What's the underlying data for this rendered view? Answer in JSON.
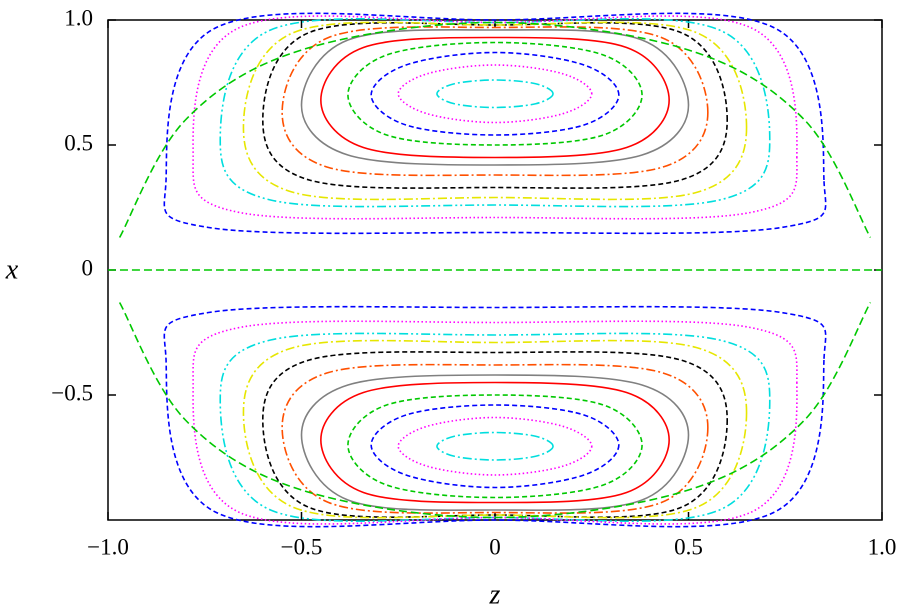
{
  "chart_data": {
    "type": "contour",
    "xlabel": "z",
    "ylabel": "x",
    "xlim": [
      -1,
      1
    ],
    "ylim": [
      -1,
      1
    ],
    "xticks": [
      {
        "value": -1,
        "label": "−1.0"
      },
      {
        "value": -0.5,
        "label": "−0.5"
      },
      0,
      0.5,
      {
        "value": 1,
        "label": "1.0"
      }
    ],
    "yticks": [
      {
        "value": -0.5,
        "label": "−0.5"
      },
      0,
      0.5,
      {
        "value": 1,
        "label": "1.0"
      }
    ],
    "series": [
      {
        "color": "#00dede",
        "dash": "dashdot",
        "closed": true,
        "x": [
          0.15,
          0.105,
          0,
          -0.105,
          -0.15,
          -0.105,
          0,
          0.105
        ],
        "y": [
          0.705,
          0.745,
          0.76,
          0.745,
          0.705,
          0.665,
          0.65,
          0.665
        ]
      },
      {
        "color": "#ff00ff",
        "dash": "dotted",
        "closed": true,
        "x": [
          0.25,
          0.175,
          0,
          -0.175,
          -0.25,
          -0.175,
          0,
          0.175
        ],
        "y": [
          0.705,
          0.785,
          0.82,
          0.785,
          0.705,
          0.625,
          0.59,
          0.625
        ]
      },
      {
        "color": "#0000ff",
        "dash": "dashed",
        "closed": true,
        "x": [
          0.32,
          0.23,
          0,
          -0.23,
          -0.32,
          -0.23,
          0,
          0.23
        ],
        "y": [
          0.7,
          0.82,
          0.87,
          0.82,
          0.7,
          0.58,
          0.54,
          0.58
        ]
      },
      {
        "color": "#00c800",
        "dash": "dashed",
        "closed": true,
        "x": [
          0.38,
          0.28,
          0,
          -0.28,
          -0.38,
          -0.28,
          0,
          0.28
        ],
        "y": [
          0.7,
          0.86,
          0.91,
          0.86,
          0.7,
          0.54,
          0.5,
          0.54
        ]
      },
      {
        "color": "#ff0000",
        "dash": "solid",
        "closed": true,
        "x": [
          0.45,
          0.34,
          0,
          -0.34,
          -0.45,
          -0.34,
          0,
          0.34
        ],
        "y": [
          0.68,
          0.89,
          0.93,
          0.89,
          0.68,
          0.49,
          0.45,
          0.49
        ]
      },
      {
        "color": "#808080",
        "dash": "solid",
        "closed": true,
        "x": [
          0.5,
          0.38,
          0,
          -0.38,
          -0.5,
          -0.38,
          0,
          0.38
        ],
        "y": [
          0.66,
          0.92,
          0.96,
          0.92,
          0.66,
          0.46,
          0.42,
          0.46
        ]
      },
      {
        "color": "#ff5000",
        "dash": "dashdot",
        "closed": true,
        "x": [
          0.55,
          0.43,
          0,
          -0.43,
          -0.55,
          -0.43,
          0,
          0.43
        ],
        "y": [
          0.63,
          0.93,
          0.97,
          0.93,
          0.63,
          0.41,
          0.38,
          0.41
        ]
      },
      {
        "color": "#000000",
        "dash": "dashed",
        "closed": true,
        "x": [
          0.6,
          0.48,
          0,
          -0.48,
          -0.6,
          -0.48,
          0,
          0.48
        ],
        "y": [
          0.6,
          0.95,
          0.98,
          0.95,
          0.6,
          0.36,
          0.33,
          0.36
        ]
      },
      {
        "color": "#e6e600",
        "dash": "dashdot",
        "closed": true,
        "x": [
          0.65,
          0.52,
          0,
          -0.52,
          -0.65,
          -0.52,
          0,
          0.52
        ],
        "y": [
          0.57,
          0.95,
          0.98,
          0.95,
          0.57,
          0.31,
          0.29,
          0.31
        ]
      },
      {
        "color": "#00dede",
        "dash": "dashdotdot",
        "closed": true,
        "x": [
          0.71,
          0.58,
          0,
          -0.58,
          -0.71,
          -0.58,
          0,
          0.58
        ],
        "y": [
          0.52,
          0.96,
          0.99,
          0.96,
          0.52,
          0.28,
          0.26,
          0.28
        ]
      },
      {
        "color": "#ff00ff",
        "dash": "dotted",
        "closed": true,
        "x": [
          0.78,
          0.66,
          0,
          -0.66,
          -0.78,
          -0.66,
          0,
          0.66
        ],
        "y": [
          0.45,
          0.97,
          0.99,
          0.97,
          0.45,
          0.23,
          0.21,
          0.23
        ]
      },
      {
        "color": "#0000ff",
        "dash": "dashed",
        "closed": true,
        "x": [
          0.85,
          0.72,
          0,
          -0.72,
          -0.85,
          -0.74,
          0,
          0.74
        ],
        "y": [
          0.36,
          0.97,
          1.0,
          0.97,
          0.36,
          0.17,
          0.15,
          0.17
        ]
      },
      {
        "color": "#00c800",
        "dash": "longdash",
        "closed": false,
        "x": [
          -0.97,
          -0.8,
          -0.5,
          0,
          0.5,
          0.8,
          0.97
        ],
        "y": [
          0.13,
          0.6,
          0.88,
          0.99,
          0.88,
          0.6,
          0.13
        ]
      },
      {
        "color": "#00c800",
        "dash": "longdash",
        "closed": false,
        "x": [
          -1,
          1
        ],
        "y": [
          0,
          0
        ]
      },
      {
        "color": "#00dede",
        "dash": "dashdot",
        "closed": true,
        "x": [
          0.15,
          0.105,
          0,
          -0.105,
          -0.15,
          -0.105,
          0,
          0.105
        ],
        "y": [
          -0.705,
          -0.745,
          -0.76,
          -0.745,
          -0.705,
          -0.665,
          -0.65,
          -0.665
        ]
      },
      {
        "color": "#ff00ff",
        "dash": "dotted",
        "closed": true,
        "x": [
          0.25,
          0.175,
          0,
          -0.175,
          -0.25,
          -0.175,
          0,
          0.175
        ],
        "y": [
          -0.705,
          -0.785,
          -0.82,
          -0.785,
          -0.705,
          -0.625,
          -0.59,
          -0.625
        ]
      },
      {
        "color": "#0000ff",
        "dash": "dashed",
        "closed": true,
        "x": [
          0.32,
          0.23,
          0,
          -0.23,
          -0.32,
          -0.23,
          0,
          0.23
        ],
        "y": [
          -0.7,
          -0.82,
          -0.87,
          -0.82,
          -0.7,
          -0.58,
          -0.54,
          -0.58
        ]
      },
      {
        "color": "#00c800",
        "dash": "dashed",
        "closed": true,
        "x": [
          0.38,
          0.28,
          0,
          -0.28,
          -0.38,
          -0.28,
          0,
          0.28
        ],
        "y": [
          -0.7,
          -0.86,
          -0.91,
          -0.86,
          -0.7,
          -0.54,
          -0.5,
          -0.54
        ]
      },
      {
        "color": "#ff0000",
        "dash": "solid",
        "closed": true,
        "x": [
          0.45,
          0.34,
          0,
          -0.34,
          -0.45,
          -0.34,
          0,
          0.34
        ],
        "y": [
          -0.68,
          -0.89,
          -0.93,
          -0.89,
          -0.68,
          -0.49,
          -0.45,
          -0.49
        ]
      },
      {
        "color": "#808080",
        "dash": "solid",
        "closed": true,
        "x": [
          0.5,
          0.38,
          0,
          -0.38,
          -0.5,
          -0.38,
          0,
          0.38
        ],
        "y": [
          -0.66,
          -0.92,
          -0.96,
          -0.92,
          -0.66,
          -0.46,
          -0.42,
          -0.46
        ]
      },
      {
        "color": "#ff5000",
        "dash": "dashdot",
        "closed": true,
        "x": [
          0.55,
          0.43,
          0,
          -0.43,
          -0.55,
          -0.43,
          0,
          0.43
        ],
        "y": [
          -0.63,
          -0.93,
          -0.97,
          -0.93,
          -0.63,
          -0.41,
          -0.38,
          -0.41
        ]
      },
      {
        "color": "#000000",
        "dash": "dashed",
        "closed": true,
        "x": [
          0.6,
          0.48,
          0,
          -0.48,
          -0.6,
          -0.48,
          0,
          0.48
        ],
        "y": [
          -0.6,
          -0.95,
          -0.98,
          -0.95,
          -0.6,
          -0.36,
          -0.33,
          -0.36
        ]
      },
      {
        "color": "#e6e600",
        "dash": "dashdot",
        "closed": true,
        "x": [
          0.65,
          0.52,
          0,
          -0.52,
          -0.65,
          -0.52,
          0,
          0.52
        ],
        "y": [
          -0.57,
          -0.95,
          -0.98,
          -0.95,
          -0.57,
          -0.31,
          -0.29,
          -0.31
        ]
      },
      {
        "color": "#00dede",
        "dash": "dashdotdot",
        "closed": true,
        "x": [
          0.71,
          0.58,
          0,
          -0.58,
          -0.71,
          -0.58,
          0,
          0.58
        ],
        "y": [
          -0.52,
          -0.96,
          -0.99,
          -0.96,
          -0.52,
          -0.28,
          -0.26,
          -0.28
        ]
      },
      {
        "color": "#ff00ff",
        "dash": "dotted",
        "closed": true,
        "x": [
          0.78,
          0.66,
          0,
          -0.66,
          -0.78,
          -0.66,
          0,
          0.66
        ],
        "y": [
          -0.45,
          -0.97,
          -0.99,
          -0.97,
          -0.45,
          -0.23,
          -0.21,
          -0.23
        ]
      },
      {
        "color": "#0000ff",
        "dash": "dashed",
        "closed": true,
        "x": [
          0.85,
          0.72,
          0,
          -0.72,
          -0.85,
          -0.74,
          0,
          0.74
        ],
        "y": [
          -0.36,
          -0.97,
          -1.0,
          -0.97,
          -0.36,
          -0.17,
          -0.15,
          -0.17
        ]
      },
      {
        "color": "#00c800",
        "dash": "longdash",
        "closed": false,
        "x": [
          -0.97,
          -0.8,
          -0.5,
          0,
          0.5,
          0.8,
          0.97
        ],
        "y": [
          -0.13,
          -0.6,
          -0.88,
          -0.99,
          -0.88,
          -0.6,
          -0.13
        ]
      }
    ]
  }
}
